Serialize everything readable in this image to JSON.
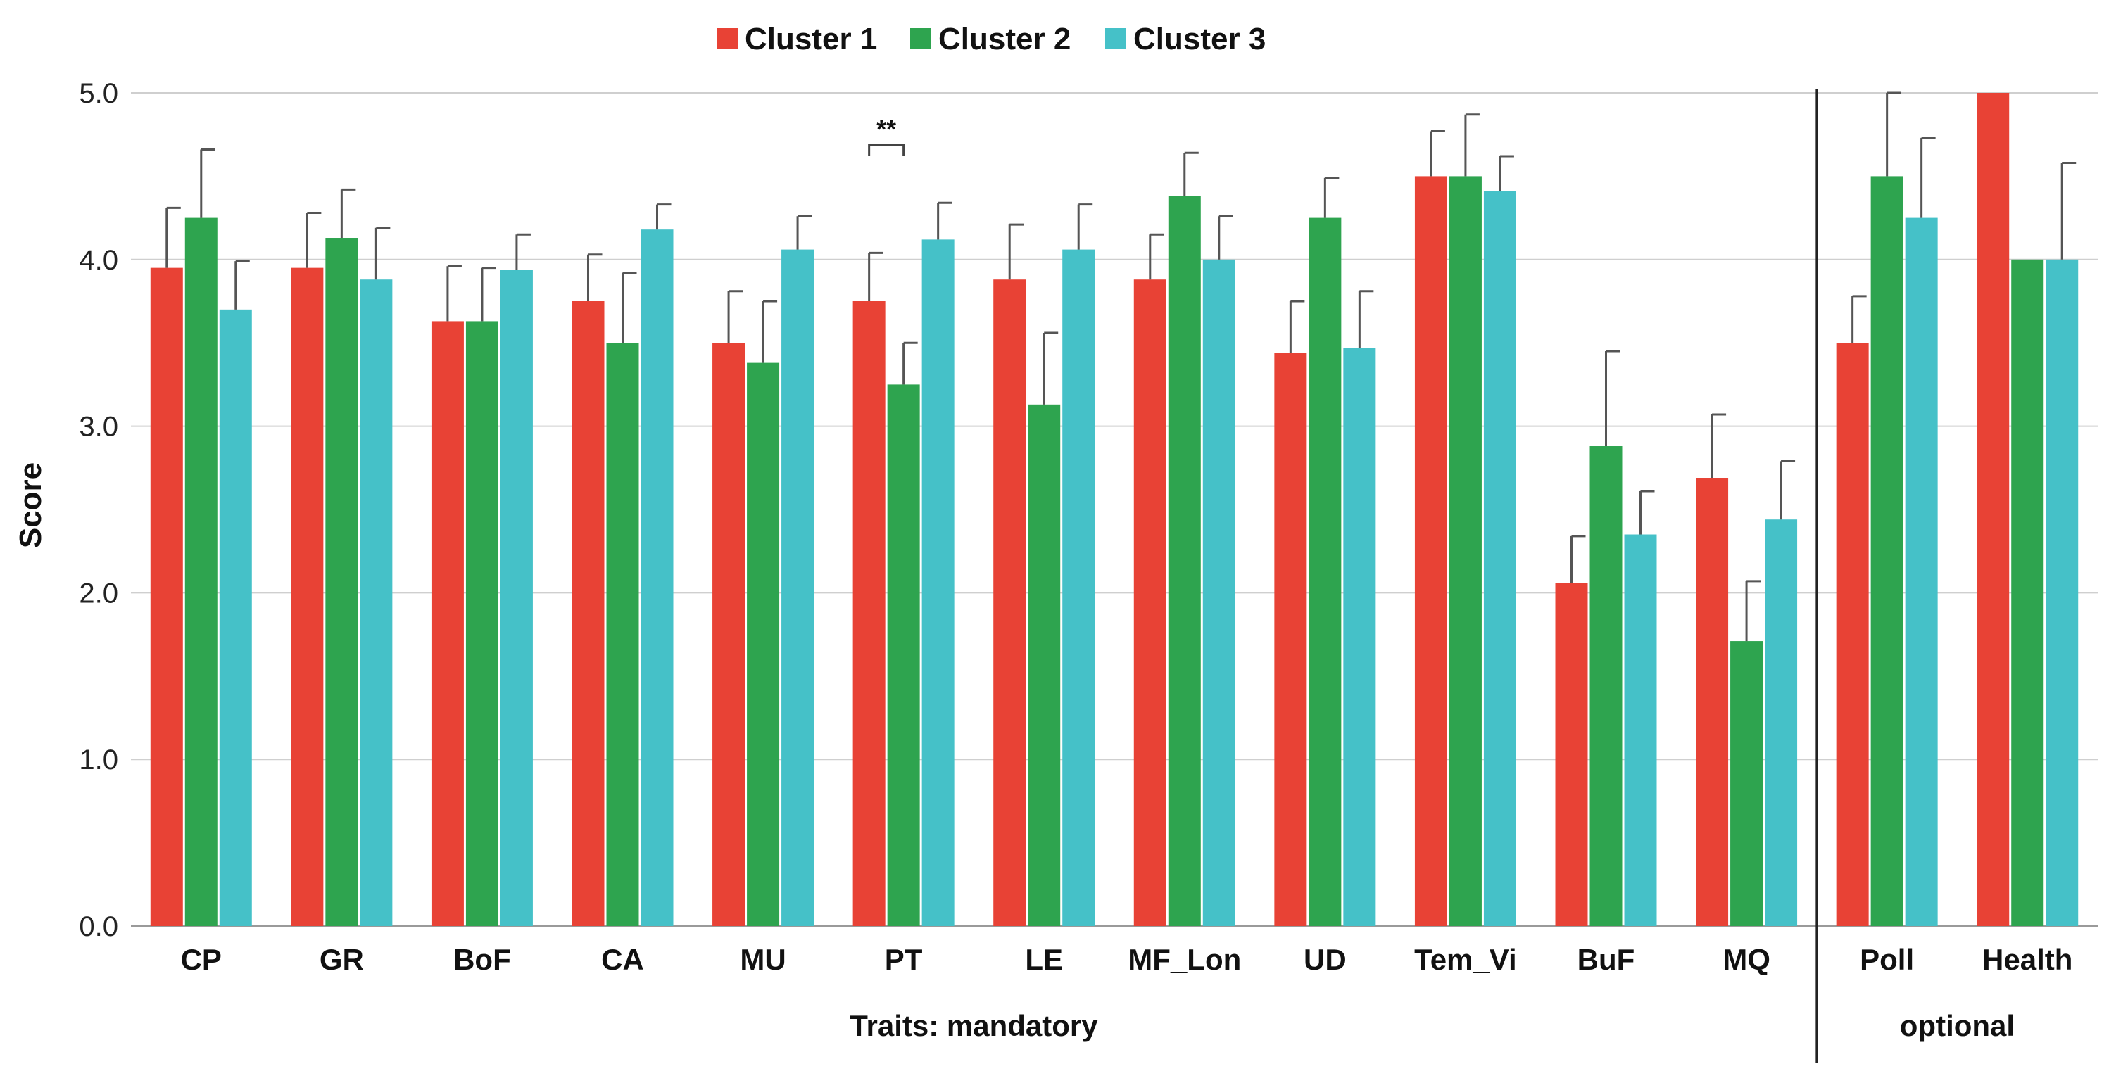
{
  "chart_data": {
    "type": "bar",
    "title": "",
    "xlabel": "",
    "ylabel": "Score",
    "ylim": [
      0,
      5
    ],
    "yticks": [
      "0.0",
      "1.0",
      "2.0",
      "3.0",
      "4.0",
      "5.0"
    ],
    "grid": true,
    "legend_position": "top-center",
    "categories": [
      "CP",
      "GR",
      "BoF",
      "CA",
      "MU",
      "PT",
      "LE",
      "MF_Lon",
      "UD",
      "Tem_Vi",
      "BuF",
      "MQ",
      "Poll",
      "Health"
    ],
    "groups": [
      {
        "label": "Traits: mandatory",
        "categories": [
          "CP",
          "GR",
          "BoF",
          "CA",
          "MU",
          "PT",
          "LE",
          "MF_Lon",
          "UD",
          "Tem_Vi",
          "BuF",
          "MQ"
        ]
      },
      {
        "label": "optional",
        "categories": [
          "Poll",
          "Health"
        ]
      }
    ],
    "series": [
      {
        "name": "Cluster 1",
        "color": "#e84235",
        "values": [
          3.95,
          3.95,
          3.63,
          3.75,
          3.5,
          3.75,
          3.88,
          3.88,
          3.44,
          4.5,
          2.06,
          2.69,
          3.5,
          5.0
        ],
        "errors": [
          0.36,
          0.33,
          0.33,
          0.28,
          0.31,
          0.29,
          0.33,
          0.27,
          0.31,
          0.27,
          0.28,
          0.38,
          0.28,
          0.0
        ]
      },
      {
        "name": "Cluster 2",
        "color": "#2ea44f",
        "values": [
          4.25,
          4.13,
          3.63,
          3.5,
          3.38,
          3.25,
          3.13,
          4.38,
          4.25,
          4.5,
          2.88,
          1.71,
          4.5,
          4.0
        ],
        "errors": [
          0.41,
          0.29,
          0.32,
          0.42,
          0.37,
          0.25,
          0.43,
          0.26,
          0.24,
          0.37,
          0.57,
          0.36,
          0.5,
          0.0
        ]
      },
      {
        "name": "Cluster 3",
        "color": "#45c1c8",
        "values": [
          3.7,
          3.88,
          3.94,
          4.18,
          4.06,
          4.12,
          4.06,
          4.0,
          3.47,
          4.41,
          2.35,
          2.44,
          4.25,
          4.0
        ],
        "errors": [
          0.29,
          0.31,
          0.21,
          0.15,
          0.2,
          0.22,
          0.27,
          0.26,
          0.34,
          0.21,
          0.26,
          0.35,
          0.48,
          0.58
        ]
      }
    ],
    "annotations": [
      {
        "text": "**",
        "category": "PT",
        "from_series": "Cluster 1",
        "to_series": "Cluster 2"
      }
    ]
  }
}
